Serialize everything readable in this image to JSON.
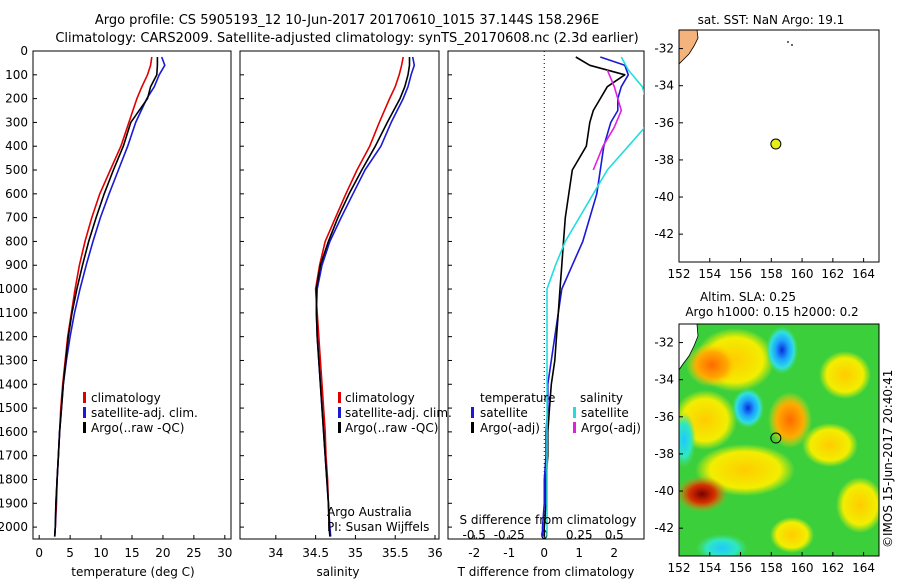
{
  "header": {
    "line1": "Argo profile: CS 5905193_12 10-Jun-2017 20170610_1015 37.144S 158.296E",
    "line2": "Climatology: CARS2009. Satellite-adjusted climatology: synTS_20170608.nc (2.3d earlier)"
  },
  "colors": {
    "climatology": "#e00000",
    "satellite": "#1a1ad6",
    "argo": "#000000",
    "sal_satellite": "#22dddd",
    "sal_argo": "#e020e0",
    "land": "#f4b27c"
  },
  "sst_title": "sat. SST: NaN Argo: 19.1",
  "sla_title1": "Altim. SLA: 0.25",
  "sla_title2": "Argo h1000: 0.15 h2000: 0.2",
  "credit": "©IMOS 15-Jun-2017 20:40:41",
  "depth_ticks": [
    "0",
    "100",
    "200",
    "300",
    "400",
    "500",
    "600",
    "700",
    "800",
    "900",
    "1000",
    "1100",
    "1200",
    "1300",
    "1400",
    "1500",
    "1600",
    "1700",
    "1800",
    "1900",
    "2000"
  ],
  "legend_left": [
    "climatology",
    "satellite-adj. clim.",
    "Argo(..raw -QC)"
  ],
  "legend_diff": {
    "temp_head": "temperature",
    "sal_head": "salinity",
    "temp_items": [
      "satellite",
      "Argo(-adj)"
    ],
    "sal_items": [
      "satellite",
      "Argo(-adj)"
    ]
  },
  "argo_note": [
    "Argo Australia",
    "PI: Susan Wijffels"
  ],
  "chart_data": [
    {
      "type": "line",
      "name": "temperature",
      "xlabel": "temperature (deg C)",
      "ylabel": "",
      "xlim": [
        -1,
        31
      ],
      "ylim": [
        2050,
        0
      ],
      "xticks": [
        "0",
        "5",
        "10",
        "15",
        "20",
        "25",
        "30"
      ],
      "series": [
        {
          "name": "climatology",
          "points": [
            [
              18.2,
              25
            ],
            [
              18,
              60
            ],
            [
              17.5,
              100
            ],
            [
              16.6,
              150
            ],
            [
              15.8,
              200
            ],
            [
              14.5,
              300
            ],
            [
              13.2,
              400
            ],
            [
              11.5,
              500
            ],
            [
              9.8,
              600
            ],
            [
              8.5,
              700
            ],
            [
              7.4,
              800
            ],
            [
              6.5,
              900
            ],
            [
              5.8,
              1000
            ],
            [
              5.2,
              1100
            ],
            [
              4.6,
              1200
            ],
            [
              4.2,
              1300
            ],
            [
              3.8,
              1400
            ],
            [
              3.5,
              1500
            ],
            [
              3.3,
              1600
            ],
            [
              3.1,
              1700
            ],
            [
              2.9,
              1800
            ],
            [
              2.8,
              1900
            ],
            [
              2.6,
              2000
            ],
            [
              2.5,
              2040
            ]
          ]
        },
        {
          "name": "satellite-adj. clim.",
          "points": [
            [
              19.8,
              25
            ],
            [
              20.3,
              60
            ],
            [
              19.4,
              100
            ],
            [
              18.6,
              150
            ],
            [
              17.4,
              200
            ],
            [
              15.6,
              300
            ],
            [
              14.3,
              400
            ],
            [
              12.8,
              500
            ],
            [
              11.3,
              600
            ],
            [
              9.9,
              700
            ],
            [
              8.7,
              800
            ],
            [
              7.6,
              900
            ],
            [
              6.6,
              1000
            ],
            [
              5.7,
              1100
            ],
            [
              5,
              1200
            ],
            [
              4.4,
              1300
            ],
            [
              3.9,
              1400
            ],
            [
              3.6,
              1500
            ],
            [
              3.3,
              1600
            ],
            [
              3.1,
              1700
            ],
            [
              2.9,
              1800
            ],
            [
              2.7,
              1900
            ],
            [
              2.6,
              2000
            ],
            [
              2.5,
              2040
            ]
          ]
        },
        {
          "name": "Argo(..raw -QC)",
          "points": [
            [
              19.1,
              25
            ],
            [
              19.1,
              60
            ],
            [
              19,
              100
            ],
            [
              18,
              150
            ],
            [
              17.5,
              200
            ],
            [
              14.8,
              300
            ],
            [
              13.6,
              400
            ],
            [
              12,
              500
            ],
            [
              10.5,
              600
            ],
            [
              9.2,
              700
            ],
            [
              8,
              800
            ],
            [
              7,
              900
            ],
            [
              6.1,
              1000
            ],
            [
              5.3,
              1100
            ],
            [
              4.7,
              1200
            ],
            [
              4.3,
              1300
            ],
            [
              3.9,
              1400
            ],
            [
              3.6,
              1500
            ],
            [
              3.3,
              1600
            ],
            [
              3.1,
              1700
            ],
            [
              2.9,
              1800
            ],
            [
              2.7,
              1900
            ],
            [
              2.6,
              2000
            ],
            [
              2.5,
              2040
            ]
          ]
        }
      ]
    },
    {
      "type": "line",
      "name": "salinity",
      "xlabel": "salinity",
      "ylabel": "",
      "xlim": [
        33.55,
        36.05
      ],
      "ylim": [
        2050,
        0
      ],
      "xticks": [
        "34",
        "34.5",
        "35",
        "35.5",
        "36"
      ],
      "series": [
        {
          "name": "climatology",
          "points": [
            [
              35.6,
              25
            ],
            [
              35.58,
              60
            ],
            [
              35.55,
              100
            ],
            [
              35.5,
              150
            ],
            [
              35.43,
              200
            ],
            [
              35.3,
              300
            ],
            [
              35.18,
              400
            ],
            [
              35.02,
              500
            ],
            [
              34.88,
              600
            ],
            [
              34.75,
              700
            ],
            [
              34.62,
              800
            ],
            [
              34.55,
              900
            ],
            [
              34.5,
              1000
            ],
            [
              34.52,
              1100
            ],
            [
              34.54,
              1200
            ],
            [
              34.56,
              1300
            ],
            [
              34.58,
              1400
            ],
            [
              34.6,
              1500
            ],
            [
              34.62,
              1600
            ],
            [
              34.63,
              1700
            ],
            [
              34.65,
              1800
            ],
            [
              34.66,
              1900
            ],
            [
              34.67,
              2000
            ],
            [
              34.68,
              2040
            ]
          ]
        },
        {
          "name": "satellite-adj. clim.",
          "points": [
            [
              35.72,
              25
            ],
            [
              35.74,
              60
            ],
            [
              35.7,
              100
            ],
            [
              35.66,
              150
            ],
            [
              35.6,
              200
            ],
            [
              35.45,
              300
            ],
            [
              35.32,
              400
            ],
            [
              35.12,
              500
            ],
            [
              34.97,
              600
            ],
            [
              34.82,
              700
            ],
            [
              34.68,
              800
            ],
            [
              34.58,
              900
            ],
            [
              34.52,
              1000
            ],
            [
              34.51,
              1100
            ],
            [
              34.52,
              1200
            ],
            [
              34.54,
              1300
            ],
            [
              34.56,
              1400
            ],
            [
              34.58,
              1500
            ],
            [
              34.6,
              1600
            ],
            [
              34.62,
              1700
            ],
            [
              34.64,
              1800
            ],
            [
              34.66,
              1900
            ],
            [
              34.68,
              2000
            ],
            [
              34.69,
              2040
            ]
          ]
        },
        {
          "name": "Argo(..raw -QC)",
          "points": [
            [
              35.68,
              25
            ],
            [
              35.68,
              60
            ],
            [
              35.66,
              100
            ],
            [
              35.62,
              150
            ],
            [
              35.56,
              200
            ],
            [
              35.4,
              300
            ],
            [
              35.25,
              400
            ],
            [
              35.08,
              500
            ],
            [
              34.92,
              600
            ],
            [
              34.78,
              700
            ],
            [
              34.66,
              800
            ],
            [
              34.56,
              900
            ],
            [
              34.51,
              1000
            ],
            [
              34.51,
              1100
            ],
            [
              34.52,
              1200
            ],
            [
              34.54,
              1300
            ],
            [
              34.56,
              1400
            ],
            [
              34.58,
              1500
            ],
            [
              34.6,
              1600
            ],
            [
              34.62,
              1700
            ],
            [
              34.64,
              1800
            ],
            [
              34.66,
              1900
            ],
            [
              34.67,
              2000
            ],
            [
              34.68,
              2040
            ]
          ]
        }
      ]
    },
    {
      "type": "line",
      "name": "difference",
      "xlabel": "T difference from climatology",
      "xlabel_top": "S difference from climatology",
      "xlim": [
        -2.75,
        2.85
      ],
      "ylim": [
        2050,
        0
      ],
      "xticks": [
        "-2",
        "-1",
        "0",
        "1",
        "2"
      ],
      "xticks_top": [
        "-0.5",
        "-0.25",
        "0",
        "0.25",
        "0.5"
      ],
      "series": [
        {
          "name": "temperature satellite",
          "points": [
            [
              1.6,
              25
            ],
            [
              2.3,
              60
            ],
            [
              2.4,
              100
            ],
            [
              2.2,
              150
            ],
            [
              2.1,
              200
            ],
            [
              2.1,
              250
            ],
            [
              1.9,
              300
            ],
            [
              1.7,
              400
            ],
            [
              1.6,
              500
            ],
            [
              1.5,
              600
            ],
            [
              1.3,
              700
            ],
            [
              1.1,
              800
            ],
            [
              0.8,
              900
            ],
            [
              0.5,
              1000
            ],
            [
              0.4,
              1100
            ],
            [
              0.3,
              1200
            ],
            [
              0.2,
              1300
            ],
            [
              0.1,
              1400
            ],
            [
              0.1,
              1500
            ],
            [
              0.05,
              1600
            ],
            [
              0.05,
              1700
            ],
            [
              0,
              1800
            ],
            [
              0,
              1900
            ],
            [
              -0.05,
              2000
            ],
            [
              -0.05,
              2040
            ]
          ]
        },
        {
          "name": "temperature Argo(-adj)",
          "points": [
            [
              0.9,
              25
            ],
            [
              1.3,
              60
            ],
            [
              2.3,
              100
            ],
            [
              1.8,
              150
            ],
            [
              1.6,
              200
            ],
            [
              1.4,
              250
            ],
            [
              1.3,
              300
            ],
            [
              1.2,
              400
            ],
            [
              0.8,
              500
            ],
            [
              0.7,
              600
            ],
            [
              0.6,
              700
            ],
            [
              0.55,
              800
            ],
            [
              0.5,
              900
            ],
            [
              0.45,
              1000
            ],
            [
              0.4,
              1100
            ],
            [
              0.35,
              1200
            ],
            [
              0.3,
              1300
            ],
            [
              0.2,
              1400
            ],
            [
              0.15,
              1500
            ],
            [
              0.1,
              1600
            ],
            [
              0.1,
              1700
            ],
            [
              0.05,
              1800
            ],
            [
              0.05,
              1900
            ],
            [
              0,
              2000
            ],
            [
              0,
              2040
            ]
          ]
        },
        {
          "name": "salinity satellite",
          "points": [
            [
              0.55,
              25
            ],
            [
              0.6,
              80
            ],
            [
              0.7,
              150
            ],
            [
              0.75,
              250
            ],
            [
              0.72,
              320
            ],
            [
              0.6,
              400
            ],
            [
              0.45,
              500
            ],
            [
              0.35,
              600
            ],
            [
              0.25,
              700
            ],
            [
              0.15,
              800
            ],
            [
              0.08,
              900
            ],
            [
              0.02,
              1000
            ],
            [
              0.02,
              1200
            ],
            [
              0.02,
              1400
            ],
            [
              0.02,
              1600
            ],
            [
              0.02,
              1800
            ],
            [
              0.02,
              2040
            ]
          ]
        },
        {
          "name": "salinity Argo(-adj)",
          "points": [
            [
              0.45,
              80
            ],
            [
              0.5,
              150
            ],
            [
              0.55,
              250
            ],
            [
              0.5,
              320
            ],
            [
              0.42,
              400
            ],
            [
              0.35,
              500
            ]
          ]
        }
      ]
    },
    {
      "type": "scatter",
      "name": "sst map",
      "title": "sat. SST: NaN Argo: 19.1",
      "xlim": [
        152,
        165
      ],
      "ylim": [
        -43.5,
        -31
      ],
      "xticks": [
        "152",
        "154",
        "156",
        "158",
        "160",
        "162",
        "164"
      ],
      "yticks": [
        "-32",
        "-34",
        "-36",
        "-38",
        "-40",
        "-42"
      ],
      "points": [
        {
          "x": 158.296,
          "y": -37.144,
          "label": "Argo"
        }
      ]
    },
    {
      "type": "heatmap",
      "name": "sla map",
      "title": "Altim. SLA: 0.25",
      "subtitle": "Argo h1000: 0.15 h2000: 0.2",
      "xlim": [
        152,
        165
      ],
      "ylim": [
        -43.5,
        -31
      ],
      "xticks": [
        "152",
        "154",
        "156",
        "158",
        "160",
        "162",
        "164"
      ],
      "yticks": [
        "-32",
        "-34",
        "-36",
        "-38",
        "-40",
        "-42"
      ],
      "points": [
        {
          "x": 158.296,
          "y": -37.144,
          "label": "Argo"
        }
      ]
    }
  ]
}
